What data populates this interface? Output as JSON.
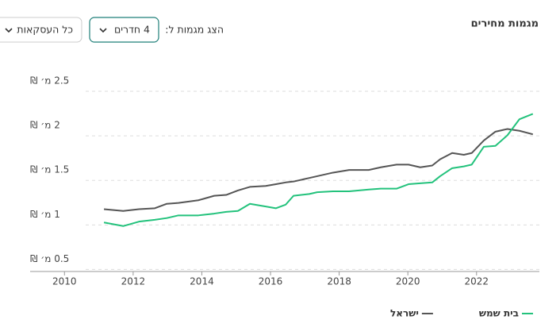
{
  "chart_data": {
    "type": "line",
    "title": "מגמות מחירים",
    "x": [
      2011.15,
      2011.71,
      2012.17,
      2012.63,
      2012.98,
      2013.32,
      2013.9,
      2014.36,
      2014.71,
      2015.05,
      2015.4,
      2015.86,
      2016.16,
      2016.44,
      2016.67,
      2017.13,
      2017.36,
      2017.82,
      2018.29,
      2018.86,
      2019.21,
      2019.67,
      2020.02,
      2020.36,
      2020.71,
      2020.94,
      2021.29,
      2021.63,
      2021.86,
      2022.21,
      2022.55,
      2022.9,
      2023.25,
      2023.64
    ],
    "series": [
      {
        "name": "ישראל",
        "color": "#555555",
        "values": [
          1.07,
          1.05,
          1.07,
          1.08,
          1.13,
          1.14,
          1.17,
          1.22,
          1.23,
          1.28,
          1.32,
          1.33,
          1.35,
          1.37,
          1.38,
          1.42,
          1.44,
          1.48,
          1.51,
          1.51,
          1.54,
          1.57,
          1.57,
          1.54,
          1.56,
          1.63,
          1.7,
          1.68,
          1.7,
          1.84,
          1.94,
          1.97,
          1.95,
          1.91
        ]
      },
      {
        "name": "בית שמש",
        "color": "#23c27c",
        "values": [
          0.92,
          0.88,
          0.93,
          0.95,
          0.97,
          1.0,
          1.0,
          1.02,
          1.04,
          1.05,
          1.13,
          1.1,
          1.08,
          1.12,
          1.22,
          1.24,
          1.26,
          1.27,
          1.27,
          1.29,
          1.3,
          1.3,
          1.35,
          1.36,
          1.37,
          1.44,
          1.53,
          1.55,
          1.57,
          1.77,
          1.78,
          1.9,
          2.08,
          2.14
        ]
      }
    ],
    "xlim": [
      2009,
      2023.83
    ],
    "xticks": [
      2010,
      2012,
      2014,
      2016,
      2018,
      2020,
      2022
    ],
    "ylim": [
      0.37,
      2.6
    ],
    "yticks": [
      {
        "value": 0.5,
        "label": "0.5 מ׳ ₪"
      },
      {
        "value": 1,
        "label": "1 מ׳ ₪"
      },
      {
        "value": 1.5,
        "label": "1.5 מ׳ ₪"
      },
      {
        "value": 2,
        "label": "2 מ׳ ₪"
      },
      {
        "value": 2.5,
        "label": "2.5 מ׳ ₪"
      }
    ],
    "grid": true
  },
  "controls": {
    "label": "הצג מגמות ל:",
    "rooms": "4 חדרים",
    "deals": "כל העסקאות"
  }
}
